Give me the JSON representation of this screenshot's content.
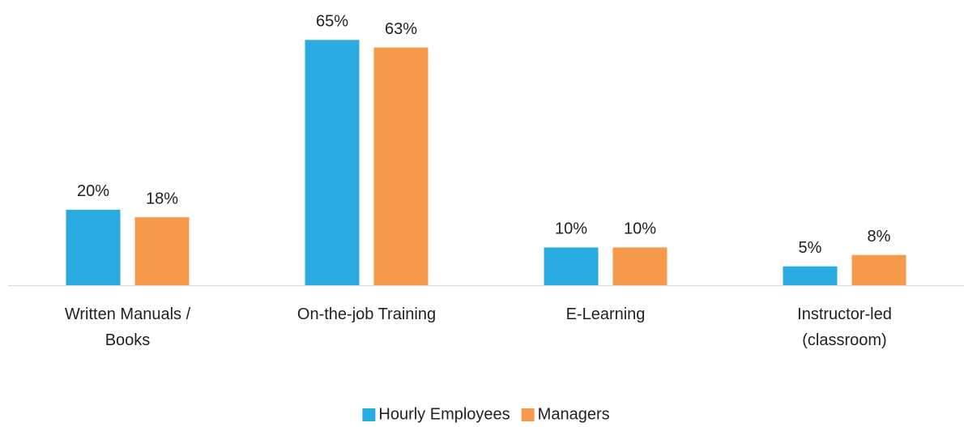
{
  "chart_data": {
    "type": "bar",
    "categories": [
      "Written Manuals /\nBooks",
      "On-the-job Training",
      "E-Learning",
      "Instructor-led\n(classroom)"
    ],
    "series": [
      {
        "name": "Hourly Employees",
        "color": "#29abe2",
        "values": [
          20,
          65,
          10,
          5
        ],
        "value_labels": [
          "20%",
          "65%",
          "10%",
          "5%"
        ]
      },
      {
        "name": "Managers",
        "color": "#f7994a",
        "values": [
          18,
          63,
          10,
          8
        ],
        "value_labels": [
          "18%",
          "63%",
          "10%",
          "8%"
        ]
      }
    ],
    "ylim": [
      0,
      70
    ],
    "legend": "bottom"
  }
}
